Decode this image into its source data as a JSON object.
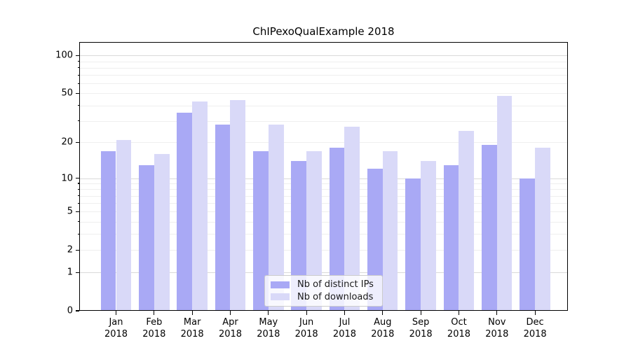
{
  "title": "ChIPexoQualExample 2018",
  "legend": {
    "items": [
      {
        "label": "Nb of distinct IPs",
        "color": "#a9a9f5"
      },
      {
        "label": "Nb of downloads",
        "color": "#d9d9f8"
      }
    ]
  },
  "axes": {
    "y_tick_labels": [
      "100",
      "50",
      "20",
      "10",
      "5",
      "2",
      "1",
      "0"
    ],
    "x_months": [
      "Jan",
      "Feb",
      "Mar",
      "Apr",
      "May",
      "Jun",
      "Jul",
      "Aug",
      "Sep",
      "Oct",
      "Nov",
      "Dec"
    ],
    "x_year": "2018"
  },
  "chart_data": {
    "type": "bar",
    "title": "ChIPexoQualExample 2018",
    "categories": [
      "Jan 2018",
      "Feb 2018",
      "Mar 2018",
      "Apr 2018",
      "May 2018",
      "Jun 2018",
      "Jul 2018",
      "Aug 2018",
      "Sep 2018",
      "Oct 2018",
      "Nov 2018",
      "Dec 2018"
    ],
    "series": [
      {
        "name": "Nb of distinct IPs",
        "color": "#a9a9f5",
        "values": [
          17,
          13,
          35,
          28,
          17,
          14,
          18,
          12,
          10,
          13,
          19,
          10
        ]
      },
      {
        "name": "Nb of downloads",
        "color": "#d9d9f8",
        "values": [
          21,
          16,
          43,
          44,
          28,
          17,
          27,
          17,
          14,
          25,
          48,
          18
        ]
      }
    ],
    "xlabel": "",
    "ylabel": "",
    "yscale": "log1p",
    "ylim": [
      0,
      115
    ],
    "y_ticks": [
      100,
      50,
      20,
      10,
      5,
      2,
      1,
      0
    ],
    "grid": true,
    "legend_position": "lower center"
  }
}
